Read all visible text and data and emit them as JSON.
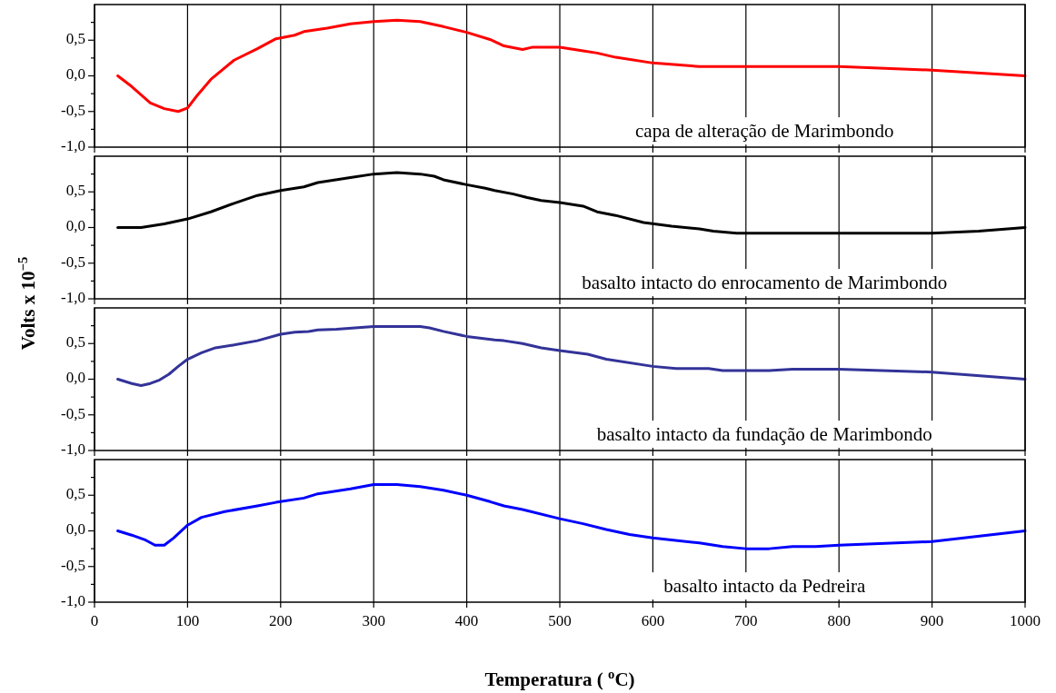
{
  "chart_data": [
    {
      "type": "line",
      "ylabel": "Volts x 10$^{−5}$",
      "annotations": [
        "capa de alteração de Marimbondo"
      ],
      "xlim": [
        0,
        1000
      ],
      "xticks": [
        0,
        100,
        200,
        300,
        400,
        500,
        600,
        700,
        800,
        900,
        1000
      ],
      "ylim": [
        -1,
        1
      ],
      "yticks": [
        {
          "value": -1,
          "label": "-1,0"
        },
        {
          "value": -0.75,
          "label": null
        },
        {
          "value": -0.5,
          "label": "-0,5"
        },
        {
          "value": -0.25,
          "label": null
        },
        {
          "value": 0,
          "label": "0,0"
        },
        {
          "value": 0.25,
          "label": null
        },
        {
          "value": 0.5,
          "label": "0,5"
        },
        {
          "value": 0.75,
          "label": null
        }
      ],
      "grid": "x",
      "tick_labels": "y",
      "series": [
        {
          "color": "#ff0000",
          "x": [
            25,
            40,
            60,
            75,
            90,
            100,
            110,
            125,
            150,
            175,
            195,
            215,
            225,
            250,
            275,
            300,
            325,
            350,
            375,
            400,
            425,
            440,
            460,
            470,
            500,
            525,
            540,
            560,
            600,
            650,
            700,
            800,
            900,
            1000
          ],
          "values": [
            0,
            -0.15,
            -0.38,
            -0.46,
            -0.5,
            -0.45,
            -0.28,
            -0.05,
            0.22,
            0.38,
            0.52,
            0.57,
            0.62,
            0.67,
            0.73,
            0.76,
            0.78,
            0.76,
            0.69,
            0.61,
            0.51,
            0.42,
            0.37,
            0.4,
            0.4,
            0.35,
            0.32,
            0.26,
            0.18,
            0.13,
            0.13,
            0.13,
            0.08,
            0
          ]
        }
      ]
    },
    {
      "type": "line",
      "annotations": [
        "basalto intacto do enrocamento de Marimbondo"
      ],
      "xlim": [
        0,
        1000
      ],
      "xticks": [
        0,
        100,
        200,
        300,
        400,
        500,
        600,
        700,
        800,
        900,
        1000
      ],
      "ylim": [
        -1,
        1
      ],
      "yticks": [
        {
          "value": -1,
          "label": "-1,0"
        },
        {
          "value": -0.75,
          "label": null
        },
        {
          "value": -0.5,
          "label": "-0,5"
        },
        {
          "value": -0.25,
          "label": null
        },
        {
          "value": 0,
          "label": "0,0"
        },
        {
          "value": 0.25,
          "label": null
        },
        {
          "value": 0.5,
          "label": "0,5"
        },
        {
          "value": 0.75,
          "label": null
        }
      ],
      "grid": "x",
      "tick_labels": "y",
      "series": [
        {
          "color": "#000000",
          "x": [
            25,
            50,
            75,
            100,
            125,
            150,
            175,
            200,
            225,
            240,
            275,
            300,
            325,
            350,
            365,
            375,
            400,
            420,
            430,
            450,
            465,
            480,
            500,
            525,
            540,
            560,
            590,
            620,
            650,
            665,
            690,
            800,
            900,
            950,
            1000
          ],
          "values": [
            0,
            0,
            0.05,
            0.12,
            0.22,
            0.34,
            0.45,
            0.52,
            0.57,
            0.63,
            0.7,
            0.75,
            0.77,
            0.75,
            0.72,
            0.67,
            0.6,
            0.55,
            0.52,
            0.47,
            0.42,
            0.38,
            0.35,
            0.3,
            0.22,
            0.17,
            0.07,
            0.02,
            -0.02,
            -0.05,
            -0.08,
            -0.08,
            -0.08,
            -0.05,
            0
          ]
        }
      ]
    },
    {
      "type": "line",
      "annotations": [
        "basalto intacto da fundação de Marimbondo"
      ],
      "xlim": [
        0,
        1000
      ],
      "xticks": [
        0,
        100,
        200,
        300,
        400,
        500,
        600,
        700,
        800,
        900,
        1000
      ],
      "ylim": [
        -1,
        1
      ],
      "yticks": [
        {
          "value": -1,
          "label": "-1,0"
        },
        {
          "value": -0.75,
          "label": null
        },
        {
          "value": -0.5,
          "label": "-0,5"
        },
        {
          "value": -0.25,
          "label": null
        },
        {
          "value": 0,
          "label": "0,0"
        },
        {
          "value": 0.25,
          "label": null
        },
        {
          "value": 0.5,
          "label": "0,5"
        },
        {
          "value": 0.75,
          "label": null
        }
      ],
      "grid": "x",
      "tick_labels": "y",
      "series": [
        {
          "color": "#333399",
          "x": [
            25,
            40,
            50,
            60,
            70,
            80,
            90,
            100,
            115,
            130,
            150,
            175,
            200,
            215,
            230,
            240,
            260,
            300,
            350,
            360,
            375,
            400,
            430,
            440,
            460,
            480,
            500,
            530,
            550,
            600,
            625,
            660,
            675,
            725,
            750,
            800,
            900,
            1000
          ],
          "values": [
            0,
            -0.06,
            -0.09,
            -0.06,
            -0.01,
            0.07,
            0.18,
            0.28,
            0.37,
            0.44,
            0.48,
            0.54,
            0.63,
            0.66,
            0.67,
            0.69,
            0.7,
            0.74,
            0.74,
            0.72,
            0.67,
            0.6,
            0.55,
            0.54,
            0.5,
            0.44,
            0.4,
            0.35,
            0.28,
            0.18,
            0.15,
            0.15,
            0.12,
            0.12,
            0.14,
            0.14,
            0.1,
            0
          ]
        }
      ]
    },
    {
      "type": "line",
      "xlabel": "Temperatura ( $^{o}$C)",
      "annotations": [
        "basalto intacto da Pedreira"
      ],
      "xlim": [
        0,
        1000
      ],
      "xticks": [
        0,
        100,
        200,
        300,
        400,
        500,
        600,
        700,
        800,
        900,
        1000
      ],
      "ylim": [
        -1,
        1
      ],
      "yticks": [
        {
          "value": -1,
          "label": "-1,0"
        },
        {
          "value": -0.75,
          "label": null
        },
        {
          "value": -0.5,
          "label": "-0,5"
        },
        {
          "value": -0.25,
          "label": null
        },
        {
          "value": 0,
          "label": "0,0"
        },
        {
          "value": 0.25,
          "label": null
        },
        {
          "value": 0.5,
          "label": "0,5"
        },
        {
          "value": 0.75,
          "label": null
        }
      ],
      "grid": "x",
      "series": [
        {
          "color": "#0000ff",
          "x": [
            25,
            40,
            55,
            65,
            75,
            85,
            100,
            115,
            140,
            175,
            195,
            225,
            240,
            275,
            300,
            325,
            350,
            375,
            400,
            425,
            440,
            460,
            500,
            525,
            550,
            575,
            600,
            650,
            675,
            700,
            725,
            750,
            775,
            800,
            900,
            1000
          ],
          "values": [
            0,
            -0.06,
            -0.13,
            -0.2,
            -0.2,
            -0.1,
            0.08,
            0.19,
            0.27,
            0.35,
            0.4,
            0.46,
            0.52,
            0.59,
            0.65,
            0.65,
            0.62,
            0.57,
            0.5,
            0.41,
            0.35,
            0.3,
            0.17,
            0.1,
            0.02,
            -0.05,
            -0.1,
            -0.17,
            -0.22,
            -0.25,
            -0.25,
            -0.22,
            -0.22,
            -0.2,
            -0.15,
            0
          ]
        }
      ]
    }
  ]
}
